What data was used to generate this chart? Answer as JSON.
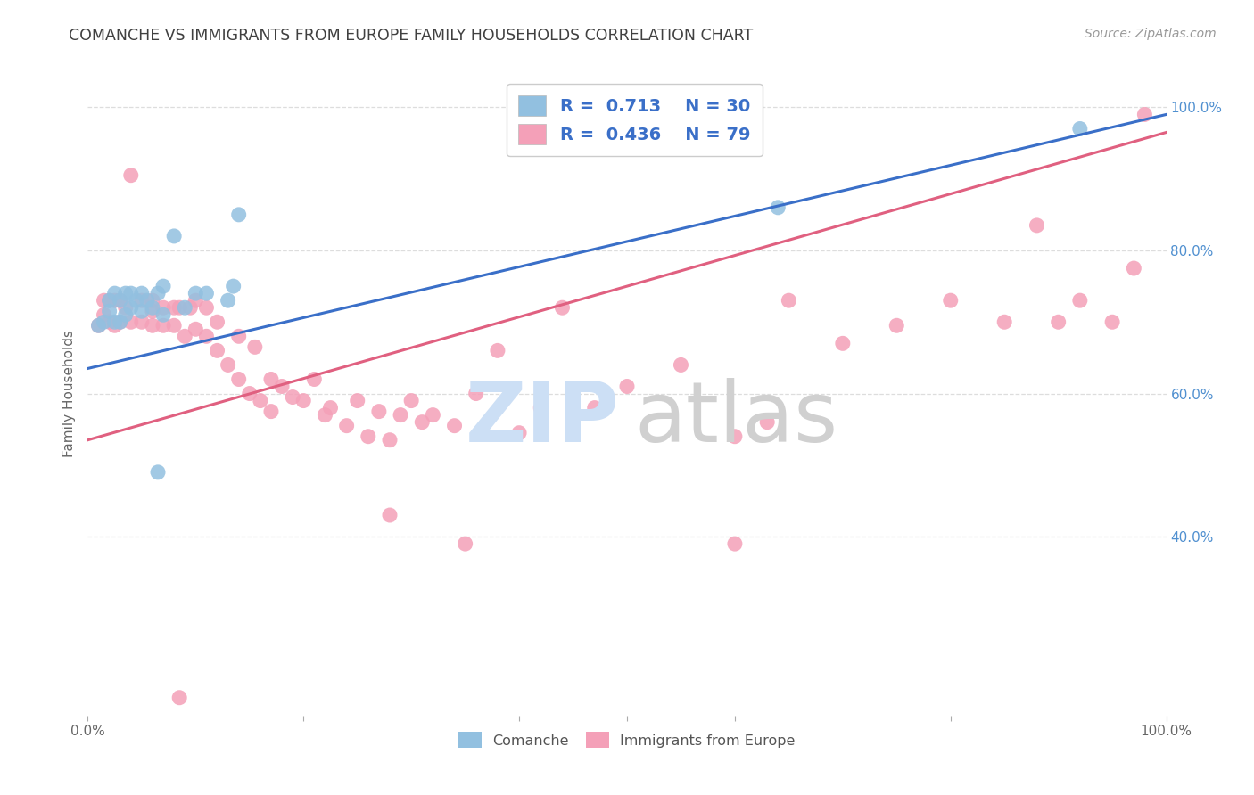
{
  "title": "COMANCHE VS IMMIGRANTS FROM EUROPE FAMILY HOUSEHOLDS CORRELATION CHART",
  "source": "Source: ZipAtlas.com",
  "ylabel": "Family Households",
  "blue_color": "#92c0e0",
  "pink_color": "#f4a0b8",
  "blue_line_color": "#3a6fc8",
  "pink_line_color": "#e06080",
  "legend_text_color": "#3a6fc8",
  "right_axis_color": "#5090d0",
  "title_color": "#404040",
  "source_color": "#999999",
  "grid_color": "#dddddd",
  "background_color": "#ffffff",
  "legend_blue_label": "R =  0.713    N = 30",
  "legend_pink_label": "R =  0.436    N = 79",
  "bottom_legend_labels": [
    "Comanche",
    "Immigrants from Europe"
  ],
  "blue_line": [
    0.0,
    0.635,
    1.0,
    0.99
  ],
  "pink_line": [
    0.0,
    0.535,
    1.0,
    0.965
  ],
  "xlim": [
    0.0,
    1.0
  ],
  "ylim": [
    0.15,
    1.05
  ],
  "right_yticks": [
    0.4,
    0.6,
    0.8,
    1.0
  ],
  "right_yticklabels": [
    "40.0%",
    "60.0%",
    "80.0%",
    "100.0%"
  ],
  "xticks": [
    0.0,
    0.2,
    0.4,
    0.5,
    0.6,
    0.8,
    1.0
  ],
  "xticklabels": [
    "0.0%",
    "",
    "",
    "",
    "",
    "",
    "100.0%"
  ],
  "blue_x": [
    0.01,
    0.015,
    0.02,
    0.02,
    0.025,
    0.025,
    0.03,
    0.03,
    0.035,
    0.035,
    0.04,
    0.04,
    0.045,
    0.05,
    0.05,
    0.055,
    0.06,
    0.065,
    0.07,
    0.07,
    0.08,
    0.09,
    0.1,
    0.11,
    0.13,
    0.135,
    0.14,
    0.065,
    0.64,
    0.92
  ],
  "blue_y": [
    0.695,
    0.7,
    0.715,
    0.73,
    0.7,
    0.74,
    0.7,
    0.73,
    0.71,
    0.74,
    0.72,
    0.74,
    0.73,
    0.715,
    0.74,
    0.73,
    0.72,
    0.74,
    0.71,
    0.75,
    0.82,
    0.72,
    0.74,
    0.74,
    0.73,
    0.75,
    0.85,
    0.49,
    0.86,
    0.97
  ],
  "pink_x": [
    0.01,
    0.015,
    0.015,
    0.02,
    0.02,
    0.025,
    0.025,
    0.03,
    0.03,
    0.035,
    0.04,
    0.04,
    0.05,
    0.05,
    0.06,
    0.06,
    0.06,
    0.07,
    0.07,
    0.08,
    0.08,
    0.085,
    0.09,
    0.095,
    0.1,
    0.1,
    0.11,
    0.11,
    0.12,
    0.12,
    0.13,
    0.14,
    0.14,
    0.15,
    0.155,
    0.16,
    0.17,
    0.17,
    0.18,
    0.19,
    0.2,
    0.21,
    0.22,
    0.225,
    0.24,
    0.25,
    0.26,
    0.27,
    0.28,
    0.29,
    0.3,
    0.31,
    0.32,
    0.34,
    0.36,
    0.38,
    0.4,
    0.42,
    0.44,
    0.47,
    0.5,
    0.55,
    0.6,
    0.63,
    0.65,
    0.7,
    0.75,
    0.8,
    0.85,
    0.88,
    0.9,
    0.92,
    0.95,
    0.97,
    0.98,
    0.085,
    0.28,
    0.35,
    0.6
  ],
  "pink_y": [
    0.695,
    0.71,
    0.73,
    0.7,
    0.73,
    0.695,
    0.73,
    0.7,
    0.73,
    0.72,
    0.7,
    0.905,
    0.7,
    0.73,
    0.695,
    0.715,
    0.73,
    0.695,
    0.72,
    0.695,
    0.72,
    0.72,
    0.68,
    0.72,
    0.69,
    0.73,
    0.68,
    0.72,
    0.66,
    0.7,
    0.64,
    0.62,
    0.68,
    0.6,
    0.665,
    0.59,
    0.575,
    0.62,
    0.61,
    0.595,
    0.59,
    0.62,
    0.57,
    0.58,
    0.555,
    0.59,
    0.54,
    0.575,
    0.535,
    0.57,
    0.59,
    0.56,
    0.57,
    0.555,
    0.6,
    0.66,
    0.545,
    0.58,
    0.72,
    0.58,
    0.61,
    0.64,
    0.54,
    0.56,
    0.73,
    0.67,
    0.695,
    0.73,
    0.7,
    0.835,
    0.7,
    0.73,
    0.7,
    0.775,
    0.99,
    0.175,
    0.43,
    0.39,
    0.39
  ],
  "watermark_zip_color": "#ccdff5",
  "watermark_atlas_color": "#d0d0d0"
}
